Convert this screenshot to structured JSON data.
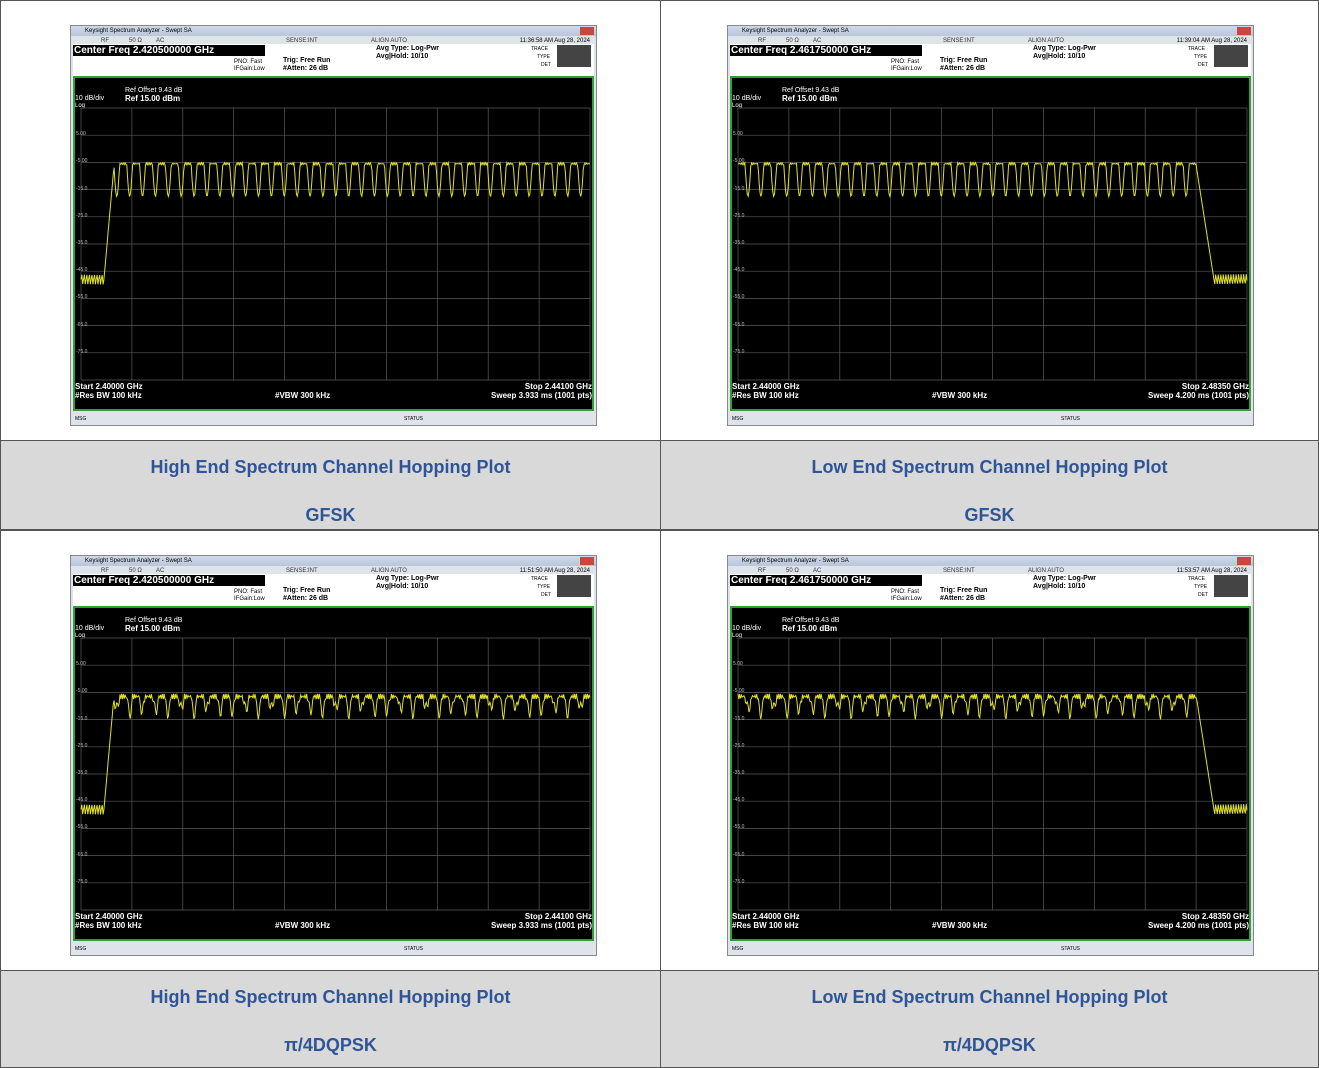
{
  "common": {
    "window_title": "Keysight Spectrum Analyzer - Swept SA",
    "rf": "RF",
    "ohm": "50 Ω",
    "ac": "AC",
    "sense": "SENSE:INT",
    "align": "ALIGN AUTO",
    "pno": "PNO: Fast",
    "ifgain": "IFGain:Low",
    "trig": "Trig: Free Run",
    "atten": "#Atten: 26 dB",
    "avg_type": "Avg Type: Log-Pwr",
    "avg_hold": "Avg|Hold: 10/10",
    "trace": "TRACE",
    "type": "TYPE",
    "det": "DET",
    "ref_offset": "Ref Offset 9.43 dB",
    "scale": "10 dB/div",
    "ref": "Ref 15.00 dBm",
    "log": "Log",
    "y_labels": [
      "5.00",
      "-5.00",
      "-15.0",
      "-25.0",
      "-35.0",
      "-45.0",
      "-55.0",
      "-65.0",
      "-75.0"
    ],
    "res_bw": "#Res BW 100 kHz",
    "vbw": "#VBW 300 kHz",
    "msg": "MSG",
    "status": "STATUS"
  },
  "plots": [
    {
      "center_freq": "Center Freq 2.420500000 GHz",
      "timestamp": "11:36:58 AM Aug 28, 2024",
      "start": "Start 2.40000 GHz",
      "stop": "Stop 2.44100 GHz",
      "sweep": "Sweep 3.933 ms (1001 pts)",
      "caption": [
        "High End Spectrum Channel Hopping Plot",
        "GFSK"
      ]
    },
    {
      "center_freq": "Center Freq 2.461750000 GHz",
      "timestamp": "11:39:04 AM Aug 28, 2024",
      "start": "Start 2.44000 GHz",
      "stop": "Stop 2.48350 GHz",
      "sweep": "Sweep 4.200 ms (1001 pts)",
      "caption": [
        "Low End Spectrum Channel Hopping Plot",
        "GFSK"
      ]
    },
    {
      "center_freq": "Center Freq 2.420500000 GHz",
      "timestamp": "11:51:50 AM Aug 28, 2024",
      "start": "Start 2.40000 GHz",
      "stop": "Stop 2.44100 GHz",
      "sweep": "Sweep 3.933 ms (1001 pts)",
      "caption": [
        "High End Spectrum Channel Hopping Plot",
        "π/4DQPSK"
      ]
    },
    {
      "center_freq": "Center Freq 2.461750000 GHz",
      "timestamp": "11:53:57 AM Aug 28, 2024",
      "start": "Start 2.44000 GHz",
      "stop": "Stop 2.48350 GHz",
      "sweep": "Sweep 4.200 ms (1001 pts)",
      "caption": [
        "Low End Spectrum Channel Hopping Plot",
        "π/4DQPSK"
      ]
    }
  ]
}
